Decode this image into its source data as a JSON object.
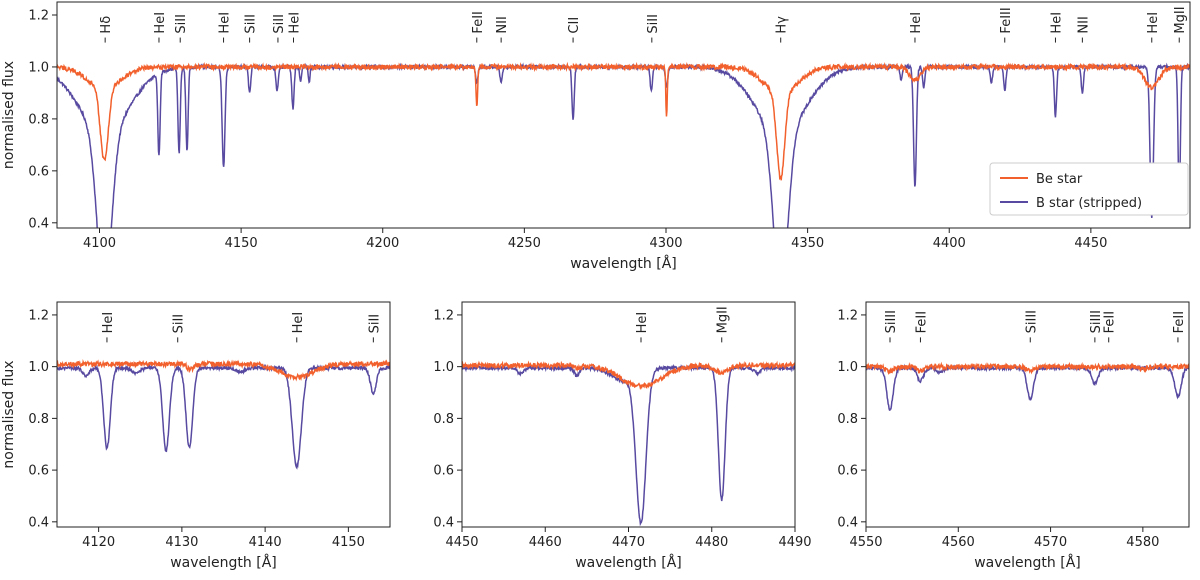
{
  "figure": {
    "colors": {
      "be": "#F2612D",
      "b": "#574AA0",
      "axis": "#222222"
    }
  },
  "legend": [
    {
      "label": "Be star",
      "color": "#F2612D"
    },
    {
      "label": "B star (stripped)",
      "color": "#574AA0"
    }
  ],
  "chart_data": [
    {
      "type": "line",
      "id": "top",
      "xlabel": "wavelength [Å]",
      "ylabel": "normalised flux",
      "xlim": [
        4085,
        4485
      ],
      "ylim": [
        0.38,
        1.25
      ],
      "xticks": [
        4100,
        4150,
        4200,
        4250,
        4300,
        4350,
        4400,
        4450
      ],
      "yticks": [
        0.4,
        0.6,
        0.8,
        1.0,
        1.2
      ],
      "line_labels": [
        {
          "label": "Hδ",
          "x": 4102
        },
        {
          "label": "HeI",
          "x": 4121
        },
        {
          "label": "SiII",
          "x": 4128.5
        },
        {
          "label": "HeI",
          "x": 4143.8
        },
        {
          "label": "SiII",
          "x": 4153
        },
        {
          "label": "SiII",
          "x": 4163
        },
        {
          "label": "HeI",
          "x": 4168.5
        },
        {
          "label": "FeII",
          "x": 4233.2
        },
        {
          "label": "NII",
          "x": 4241.8
        },
        {
          "label": "CII",
          "x": 4267.2
        },
        {
          "label": "SiII",
          "x": 4295
        },
        {
          "label": "Hγ",
          "x": 4340.5
        },
        {
          "label": "HeI",
          "x": 4387.9
        },
        {
          "label": "FeIII",
          "x": 4419.6
        },
        {
          "label": "HeI",
          "x": 4437.5
        },
        {
          "label": "NII",
          "x": 4447
        },
        {
          "label": "HeI",
          "x": 4471.5
        },
        {
          "label": "MgII",
          "x": 4481.2
        }
      ],
      "series": [
        {
          "name": "B star (stripped)",
          "continuum": 1.0,
          "lines": [
            [
              4101.7,
              0.62,
              2.5
            ],
            [
              4101.7,
              0.25,
              9
            ],
            [
              4121.0,
              0.32,
              0.4
            ],
            [
              4128.1,
              0.33,
              0.4
            ],
            [
              4130.9,
              0.32,
              0.4
            ],
            [
              4143.8,
              0.39,
              0.5
            ],
            [
              4153.0,
              0.1,
              0.4
            ],
            [
              4162.7,
              0.09,
              0.4
            ],
            [
              4168.3,
              0.16,
              0.4
            ],
            [
              4171.0,
              0.06,
              0.3
            ],
            [
              4174.0,
              0.06,
              0.3
            ],
            [
              4233.2,
              0.06,
              0.4
            ],
            [
              4241.8,
              0.06,
              0.4
            ],
            [
              4267.2,
              0.2,
              0.4
            ],
            [
              4294.8,
              0.09,
              0.4
            ],
            [
              4300.2,
              0.08,
              0.4
            ],
            [
              4340.5,
              0.62,
              2.5
            ],
            [
              4340.5,
              0.25,
              9
            ],
            [
              4383.0,
              0.05,
              0.4
            ],
            [
              4387.9,
              0.46,
              0.5
            ],
            [
              4391.0,
              0.08,
              0.4
            ],
            [
              4414.9,
              0.06,
              0.4
            ],
            [
              4419.6,
              0.09,
              0.4
            ],
            [
              4437.5,
              0.19,
              0.4
            ],
            [
              4447.0,
              0.1,
              0.4
            ],
            [
              4471.5,
              0.58,
              0.6
            ],
            [
              4481.2,
              0.51,
              0.4
            ]
          ]
        },
        {
          "name": "Be star",
          "continuum": 1.0,
          "lines": [
            [
              4101.7,
              0.28,
              1.4
            ],
            [
              4101.7,
              0.08,
              6
            ],
            [
              4233.2,
              0.15,
              0.3
            ],
            [
              4300.2,
              0.2,
              0.25
            ],
            [
              4340.5,
              0.33,
              1.4
            ],
            [
              4340.5,
              0.1,
              6
            ],
            [
              4387.9,
              0.05,
              2
            ],
            [
              4471.5,
              0.08,
              2.5
            ]
          ]
        }
      ]
    },
    {
      "type": "line",
      "id": "bottom-left",
      "xlabel": "wavelength [Å]",
      "ylabel": "normalised flux",
      "xlim": [
        4115,
        4155
      ],
      "ylim": [
        0.38,
        1.25
      ],
      "xticks": [
        4120,
        4130,
        4140,
        4150
      ],
      "yticks": [
        0.4,
        0.6,
        0.8,
        1.0,
        1.2
      ],
      "line_labels": [
        {
          "label": "HeI",
          "x": 4121
        },
        {
          "label": "SiII",
          "x": 4129.5
        },
        {
          "label": "HeI",
          "x": 4143.8
        },
        {
          "label": "SiII",
          "x": 4153
        }
      ],
      "series": [
        {
          "name": "B star (stripped)",
          "continuum": 0.995,
          "lines": [
            [
              4121.0,
              0.31,
              0.4
            ],
            [
              4128.1,
              0.32,
              0.4
            ],
            [
              4130.9,
              0.31,
              0.4
            ],
            [
              4143.8,
              0.38,
              0.55
            ],
            [
              4153.0,
              0.1,
              0.35
            ],
            [
              4118.5,
              0.03,
              0.4
            ],
            [
              4124.5,
              0.02,
              0.5
            ],
            [
              4137.0,
              0.015,
              0.5
            ]
          ]
        },
        {
          "name": "Be star",
          "continuum": 1.01,
          "lines": [
            [
              4131.0,
              0.02,
              0.4
            ],
            [
              4143.8,
              0.05,
              2.0
            ]
          ]
        }
      ]
    },
    {
      "type": "line",
      "id": "bottom-middle",
      "xlabel": "wavelength [Å]",
      "ylabel": "",
      "xlim": [
        4450,
        4490
      ],
      "ylim": [
        0.38,
        1.25
      ],
      "xticks": [
        4450,
        4460,
        4470,
        4480,
        4490
      ],
      "yticks": [
        0.4,
        0.6,
        0.8,
        1.0,
        1.2
      ],
      "line_labels": [
        {
          "label": "HeI",
          "x": 4471.5
        },
        {
          "label": "MgII",
          "x": 4481.2
        }
      ],
      "series": [
        {
          "name": "B star (stripped)",
          "continuum": 0.995,
          "lines": [
            [
              4471.5,
              0.58,
              0.6
            ],
            [
              4469.5,
              0.05,
              1.5
            ],
            [
              4481.2,
              0.51,
              0.4
            ],
            [
              4463.8,
              0.03,
              0.3
            ],
            [
              4457.0,
              0.02,
              0.4
            ],
            [
              4485.5,
              0.02,
              0.4
            ]
          ]
        },
        {
          "name": "Be star",
          "continuum": 1.005,
          "lines": [
            [
              4471.5,
              0.08,
              2.5
            ],
            [
              4481.2,
              0.03,
              0.8
            ],
            [
              4464.0,
              0.01,
              0.3
            ]
          ]
        }
      ]
    },
    {
      "type": "line",
      "id": "bottom-right",
      "xlabel": "wavelength [Å]",
      "ylabel": "",
      "xlim": [
        4550,
        4585
      ],
      "ylim": [
        0.38,
        1.25
      ],
      "xticks": [
        4550,
        4560,
        4570,
        4580
      ],
      "yticks": [
        0.4,
        0.6,
        0.8,
        1.0,
        1.2
      ],
      "line_labels": [
        {
          "label": "SiIII",
          "x": 4552.6
        },
        {
          "label": "FeII",
          "x": 4555.9
        },
        {
          "label": "SiIII",
          "x": 4567.8
        },
        {
          "label": "SiIII",
          "x": 4574.8
        },
        {
          "label": "FeII",
          "x": 4576.3
        },
        {
          "label": "FeII",
          "x": 4583.8
        }
      ],
      "series": [
        {
          "name": "B star (stripped)",
          "continuum": 0.995,
          "lines": [
            [
              4552.6,
              0.16,
              0.35
            ],
            [
              4555.9,
              0.05,
              0.35
            ],
            [
              4558.0,
              0.02,
              0.3
            ],
            [
              4567.8,
              0.12,
              0.35
            ],
            [
              4574.8,
              0.06,
              0.35
            ],
            [
              4583.8,
              0.11,
              0.35
            ]
          ]
        },
        {
          "name": "Be star",
          "continuum": 1.0,
          "lines": [
            [
              4552.6,
              0.02,
              0.4
            ],
            [
              4555.9,
              0.015,
              0.4
            ],
            [
              4567.8,
              0.015,
              0.4
            ],
            [
              4580.0,
              0.01,
              0.4
            ]
          ]
        }
      ]
    }
  ]
}
